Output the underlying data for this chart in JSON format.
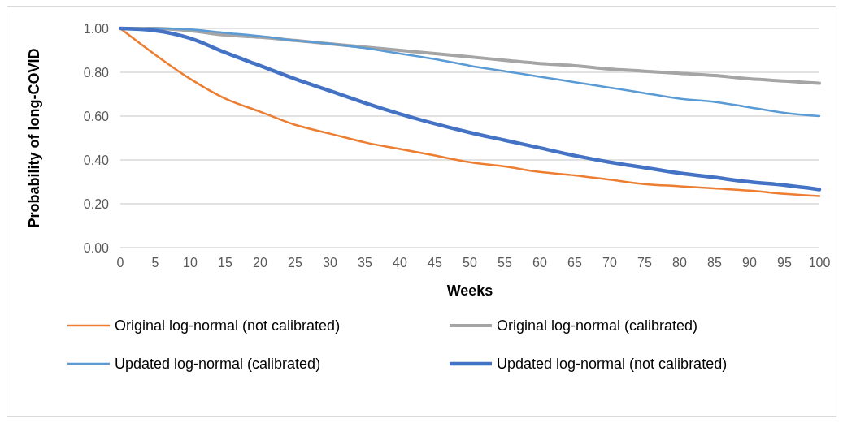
{
  "chart_data": {
    "type": "line",
    "xlabel": "Weeks",
    "ylabel": "Probability of long-COVID",
    "x": [
      0,
      5,
      10,
      15,
      20,
      25,
      30,
      35,
      40,
      45,
      50,
      55,
      60,
      65,
      70,
      75,
      80,
      85,
      90,
      95,
      100
    ],
    "xlim": [
      0,
      100
    ],
    "xticks": [
      0,
      5,
      10,
      15,
      20,
      25,
      30,
      35,
      40,
      45,
      50,
      55,
      60,
      65,
      70,
      75,
      80,
      85,
      90,
      95,
      100
    ],
    "ylim": [
      0,
      1
    ],
    "yticks": [
      {
        "value": 0,
        "label": "0.00"
      },
      {
        "value": 0.2,
        "label": "0.20"
      },
      {
        "value": 0.4,
        "label": "0.40"
      },
      {
        "value": 0.6,
        "label": "0.60"
      },
      {
        "value": 0.8,
        "label": "0.80"
      },
      {
        "value": 1,
        "label": "1.00"
      }
    ],
    "grid": "y",
    "legend": "bottom",
    "marker": "none",
    "line_style": "solid",
    "series": [
      {
        "name": "Original log-normal (not calibrated)",
        "color": "#ed7d31",
        "values": [
          1.0,
          0.88,
          0.77,
          0.68,
          0.62,
          0.56,
          0.52,
          0.48,
          0.45,
          0.42,
          0.39,
          0.37,
          0.345,
          0.33,
          0.31,
          0.29,
          0.28,
          0.27,
          0.26,
          0.245,
          0.235
        ]
      },
      {
        "name": "Original log-normal (calibrated)",
        "color": "#a5a5a5",
        "values": [
          1.0,
          1.0,
          0.99,
          0.97,
          0.96,
          0.945,
          0.93,
          0.915,
          0.9,
          0.885,
          0.87,
          0.855,
          0.84,
          0.83,
          0.815,
          0.805,
          0.795,
          0.785,
          0.77,
          0.76,
          0.75
        ]
      },
      {
        "name": "Updated log-normal (calibrated)",
        "color": "#5b9bd5",
        "values": [
          1.0,
          1.0,
          0.995,
          0.98,
          0.965,
          0.945,
          0.93,
          0.91,
          0.885,
          0.86,
          0.83,
          0.805,
          0.78,
          0.755,
          0.73,
          0.705,
          0.68,
          0.665,
          0.64,
          0.615,
          0.6
        ]
      },
      {
        "name": "Updated log-normal (not calibrated)",
        "color": "#4472c4",
        "values": [
          1.0,
          0.99,
          0.955,
          0.89,
          0.83,
          0.77,
          0.715,
          0.66,
          0.61,
          0.565,
          0.525,
          0.49,
          0.455,
          0.42,
          0.39,
          0.365,
          0.34,
          0.32,
          0.3,
          0.285,
          0.265
        ]
      }
    ]
  }
}
